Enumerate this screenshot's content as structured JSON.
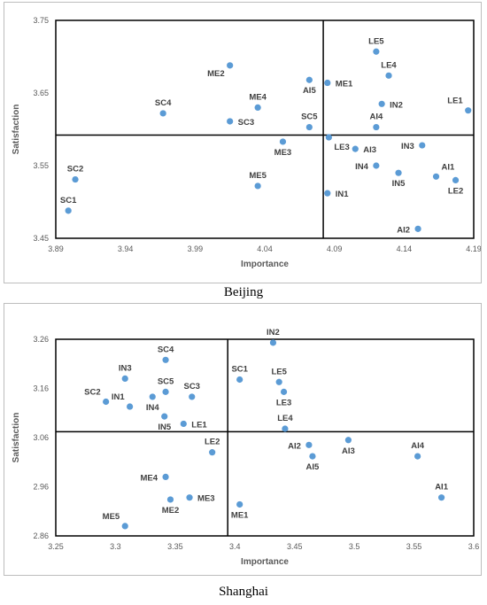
{
  "charts": [
    {
      "type": "scatter",
      "caption": "Beijing",
      "xlabel": "Importance",
      "ylabel": "Satisfaction",
      "xlim": [
        3.89,
        4.19
      ],
      "ylim": [
        3.45,
        3.75
      ],
      "xticks": [
        3.89,
        3.94,
        3.99,
        4.04,
        4.09,
        4.14,
        4.19
      ],
      "yticks": [
        3.45,
        3.55,
        3.65,
        3.75
      ],
      "xtick_labels": [
        "3.89",
        "3.94",
        "3.99",
        "4.04",
        "4.09",
        "4.14",
        "4.19"
      ],
      "ytick_labels": [
        "3.45",
        "3.55",
        "3.65",
        "3.75"
      ],
      "divider_x": 4.082,
      "divider_y": 3.592,
      "point_color": "#5b9bd5",
      "points": [
        {
          "label": "LE5",
          "x": 4.12,
          "y": 3.707,
          "pos": "n"
        },
        {
          "label": "LE4",
          "x": 4.129,
          "y": 3.674,
          "pos": "n"
        },
        {
          "label": "ME2",
          "x": 4.015,
          "y": 3.688,
          "pos": "sw"
        },
        {
          "label": "AI5",
          "x": 4.072,
          "y": 3.668,
          "pos": "s"
        },
        {
          "label": "ME1",
          "x": 4.085,
          "y": 3.664,
          "pos": "e"
        },
        {
          "label": "IN2",
          "x": 4.124,
          "y": 3.635,
          "pos": "e"
        },
        {
          "label": "LE1",
          "x": 4.186,
          "y": 3.626,
          "pos": "nw"
        },
        {
          "label": "SC4",
          "x": 3.967,
          "y": 3.622,
          "pos": "n"
        },
        {
          "label": "ME4",
          "x": 4.035,
          "y": 3.63,
          "pos": "n"
        },
        {
          "label": "SC3",
          "x": 4.015,
          "y": 3.611,
          "pos": "e"
        },
        {
          "label": "SC5",
          "x": 4.072,
          "y": 3.603,
          "pos": "n"
        },
        {
          "label": "AI4",
          "x": 4.12,
          "y": 3.603,
          "pos": "n"
        },
        {
          "label": "LE3",
          "x": 4.086,
          "y": 3.589,
          "pos": "se"
        },
        {
          "label": "ME3",
          "x": 4.053,
          "y": 3.583,
          "pos": "s"
        },
        {
          "label": "AI3",
          "x": 4.105,
          "y": 3.573,
          "pos": "e"
        },
        {
          "label": "IN3",
          "x": 4.153,
          "y": 3.578,
          "pos": "w"
        },
        {
          "label": "IN4",
          "x": 4.12,
          "y": 3.55,
          "pos": "w"
        },
        {
          "label": "AI1",
          "x": 4.163,
          "y": 3.535,
          "pos": "ne"
        },
        {
          "label": "IN5",
          "x": 4.136,
          "y": 3.54,
          "pos": "s"
        },
        {
          "label": "LE2",
          "x": 4.177,
          "y": 3.53,
          "pos": "s"
        },
        {
          "label": "SC2",
          "x": 3.904,
          "y": 3.531,
          "pos": "n"
        },
        {
          "label": "ME5",
          "x": 4.035,
          "y": 3.522,
          "pos": "n"
        },
        {
          "label": "IN1",
          "x": 4.085,
          "y": 3.512,
          "pos": "e"
        },
        {
          "label": "SC1",
          "x": 3.899,
          "y": 3.488,
          "pos": "n"
        },
        {
          "label": "AI2",
          "x": 4.15,
          "y": 3.463,
          "pos": "w"
        }
      ]
    },
    {
      "type": "scatter",
      "caption": "Shanghai",
      "xlabel": "Importance",
      "ylabel": "Satisfaction",
      "xlim": [
        3.25,
        3.6
      ],
      "ylim": [
        2.86,
        3.26
      ],
      "xticks": [
        3.25,
        3.3,
        3.35,
        3.4,
        3.45,
        3.5,
        3.55,
        3.6
      ],
      "yticks": [
        2.86,
        2.96,
        3.06,
        3.16,
        3.26
      ],
      "xtick_labels": [
        "3.25",
        "3.3",
        "3.35",
        "3.4",
        "3.45",
        "3.5",
        "3.55",
        "3.6"
      ],
      "ytick_labels": [
        "2.86",
        "2.96",
        "3.06",
        "3.16",
        "3.26"
      ],
      "divider_x": 3.394,
      "divider_y": 3.072,
      "point_color": "#5b9bd5",
      "points": [
        {
          "label": "IN2",
          "x": 3.432,
          "y": 3.253,
          "pos": "n"
        },
        {
          "label": "SC4",
          "x": 3.342,
          "y": 3.218,
          "pos": "n"
        },
        {
          "label": "IN3",
          "x": 3.308,
          "y": 3.18,
          "pos": "n"
        },
        {
          "label": "SC1",
          "x": 3.404,
          "y": 3.178,
          "pos": "n"
        },
        {
          "label": "LE5",
          "x": 3.437,
          "y": 3.173,
          "pos": "n"
        },
        {
          "label": "SC5",
          "x": 3.342,
          "y": 3.153,
          "pos": "n"
        },
        {
          "label": "SC3",
          "x": 3.364,
          "y": 3.143,
          "pos": "n"
        },
        {
          "label": "LE3",
          "x": 3.441,
          "y": 3.153,
          "pos": "s"
        },
        {
          "label": "SC2",
          "x": 3.292,
          "y": 3.133,
          "pos": "nw"
        },
        {
          "label": "IN1",
          "x": 3.312,
          "y": 3.123,
          "pos": "nw"
        },
        {
          "label": "IN4",
          "x": 3.331,
          "y": 3.143,
          "pos": "s"
        },
        {
          "label": "IN5",
          "x": 3.341,
          "y": 3.103,
          "pos": "s"
        },
        {
          "label": "LE1",
          "x": 3.357,
          "y": 3.088,
          "pos": "e"
        },
        {
          "label": "LE4",
          "x": 3.442,
          "y": 3.078,
          "pos": "n"
        },
        {
          "label": "AI3",
          "x": 3.495,
          "y": 3.055,
          "pos": "s"
        },
        {
          "label": "AI2",
          "x": 3.462,
          "y": 3.045,
          "pos": "w"
        },
        {
          "label": "LE2",
          "x": 3.381,
          "y": 3.03,
          "pos": "n"
        },
        {
          "label": "AI5",
          "x": 3.465,
          "y": 3.022,
          "pos": "s"
        },
        {
          "label": "AI4",
          "x": 3.553,
          "y": 3.022,
          "pos": "n"
        },
        {
          "label": "ME4",
          "x": 3.342,
          "y": 2.98,
          "pos": "w"
        },
        {
          "label": "ME3",
          "x": 3.362,
          "y": 2.938,
          "pos": "e"
        },
        {
          "label": "ME2",
          "x": 3.346,
          "y": 2.934,
          "pos": "s"
        },
        {
          "label": "AI1",
          "x": 3.573,
          "y": 2.938,
          "pos": "n"
        },
        {
          "label": "ME1",
          "x": 3.404,
          "y": 2.924,
          "pos": "s"
        },
        {
          "label": "ME5",
          "x": 3.308,
          "y": 2.88,
          "pos": "nw"
        }
      ]
    }
  ]
}
